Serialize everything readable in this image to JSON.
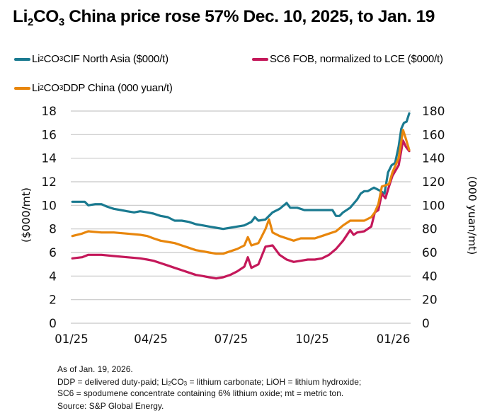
{
  "title": {
    "prefix": "Li",
    "sub1": "2",
    "mid": "CO",
    "sub2": "3",
    "rest": " China price rose 57% Dec. 10, 2025, to Jan. 19"
  },
  "legend": [
    {
      "id": "cif",
      "prefix": "Li",
      "sub1": "2",
      "mid": "CO",
      "sub2": "3",
      "rest": " CIF North Asia ($000/t)",
      "color": "#1a7a90"
    },
    {
      "id": "sc6",
      "prefix": "",
      "sub1": "",
      "mid": "",
      "sub2": "",
      "rest": "SC6 FOB, normalized to LCE ($000/t)",
      "color": "#c4185a"
    },
    {
      "id": "ddp",
      "prefix": "Li",
      "sub1": "2",
      "mid": "CO",
      "sub2": "3",
      "rest": " DDP China (000 yuan/t)",
      "color": "#e8860c"
    }
  ],
  "footnotes": {
    "line1": "As of Jan. 19, 2026.",
    "line2_a": "DDP = delivered duty-paid; Li",
    "line2_sub1": "2",
    "line2_b": "CO",
    "line2_sub2": "3",
    "line2_c": " = lithium carbonate; LiOH = lithium hydroxide;",
    "line3": "SC6 = spodumene concentrate containing 6% lithium oxide; mt = metric ton.",
    "line4": "Source: S&P Global Energy."
  },
  "chart_data": {
    "type": "line",
    "title": "Li2CO3 China price rose 57% Dec. 10, 2025, to Jan. 19",
    "xlabel": "",
    "ylabel": "($000/mt)",
    "ylabel_right": "(000 yuan/mt)",
    "ylim": [
      0,
      18
    ],
    "ylim_right": [
      0,
      180
    ],
    "xlim": [
      "2025-01-01",
      "2026-01-19"
    ],
    "grid": true,
    "legend_position": "top",
    "yticks": [
      "0",
      "2",
      "4",
      "6",
      "8",
      "10",
      "12",
      "14",
      "16",
      "18"
    ],
    "yticks_right": [
      "0",
      "20",
      "40",
      "60",
      "80",
      "100",
      "120",
      "140",
      "160",
      "180"
    ],
    "xticks": [
      {
        "label": "01/25",
        "date": "2025-01-01"
      },
      {
        "label": "04/25",
        "date": "2025-04-01"
      },
      {
        "label": "07/25",
        "date": "2025-07-01"
      },
      {
        "label": "10/25",
        "date": "2025-10-01"
      },
      {
        "label": "01/26",
        "date": "2026-01-01"
      }
    ],
    "series": [
      {
        "name": "Li2CO3 CIF North Asia ($000/t)",
        "axis": "left",
        "color": "#1a7a90",
        "points": [
          [
            "2025-01-02",
            10.3
          ],
          [
            "2025-01-16",
            10.3
          ],
          [
            "2025-01-20",
            10.0
          ],
          [
            "2025-01-28",
            10.1
          ],
          [
            "2025-02-04",
            10.1
          ],
          [
            "2025-02-10",
            9.9
          ],
          [
            "2025-02-18",
            9.7
          ],
          [
            "2025-02-26",
            9.6
          ],
          [
            "2025-03-05",
            9.5
          ],
          [
            "2025-03-13",
            9.4
          ],
          [
            "2025-03-20",
            9.5
          ],
          [
            "2025-03-28",
            9.4
          ],
          [
            "2025-04-04",
            9.3
          ],
          [
            "2025-04-12",
            9.1
          ],
          [
            "2025-04-20",
            9.0
          ],
          [
            "2025-04-28",
            8.7
          ],
          [
            "2025-05-06",
            8.7
          ],
          [
            "2025-05-14",
            8.6
          ],
          [
            "2025-05-22",
            8.4
          ],
          [
            "2025-05-30",
            8.3
          ],
          [
            "2025-06-06",
            8.2
          ],
          [
            "2025-06-14",
            8.1
          ],
          [
            "2025-06-22",
            8.0
          ],
          [
            "2025-06-30",
            8.1
          ],
          [
            "2025-07-08",
            8.2
          ],
          [
            "2025-07-16",
            8.3
          ],
          [
            "2025-07-24",
            8.6
          ],
          [
            "2025-07-28",
            9.0
          ],
          [
            "2025-08-01",
            8.7
          ],
          [
            "2025-08-09",
            8.8
          ],
          [
            "2025-08-17",
            9.4
          ],
          [
            "2025-08-25",
            9.7
          ],
          [
            "2025-09-02",
            10.2
          ],
          [
            "2025-09-06",
            9.8
          ],
          [
            "2025-09-14",
            9.8
          ],
          [
            "2025-09-22",
            9.6
          ],
          [
            "2025-09-30",
            9.6
          ],
          [
            "2025-10-08",
            9.6
          ],
          [
            "2025-10-16",
            9.6
          ],
          [
            "2025-10-24",
            9.6
          ],
          [
            "2025-10-28",
            9.1
          ],
          [
            "2025-11-01",
            9.1
          ],
          [
            "2025-11-05",
            9.4
          ],
          [
            "2025-11-13",
            9.8
          ],
          [
            "2025-11-21",
            10.5
          ],
          [
            "2025-11-25",
            11.0
          ],
          [
            "2025-11-29",
            11.2
          ],
          [
            "2025-12-03",
            11.2
          ],
          [
            "2025-12-10",
            11.5
          ],
          [
            "2025-12-18",
            11.2
          ],
          [
            "2025-12-22",
            11.0
          ],
          [
            "2025-12-26",
            12.8
          ],
          [
            "2025-12-30",
            13.4
          ],
          [
            "2026-01-03",
            13.6
          ],
          [
            "2026-01-07",
            15.0
          ],
          [
            "2026-01-10",
            16.5
          ],
          [
            "2026-01-13",
            17.0
          ],
          [
            "2026-01-16",
            17.1
          ],
          [
            "2026-01-19",
            17.8
          ]
        ]
      },
      {
        "name": "SC6 FOB, normalized to LCE ($000/t)",
        "axis": "left",
        "color": "#c4185a",
        "points": [
          [
            "2025-01-02",
            5.5
          ],
          [
            "2025-01-13",
            5.6
          ],
          [
            "2025-01-20",
            5.8
          ],
          [
            "2025-02-04",
            5.8
          ],
          [
            "2025-02-18",
            5.7
          ],
          [
            "2025-03-05",
            5.6
          ],
          [
            "2025-03-20",
            5.5
          ],
          [
            "2025-03-28",
            5.4
          ],
          [
            "2025-04-04",
            5.3
          ],
          [
            "2025-04-12",
            5.1
          ],
          [
            "2025-04-20",
            4.9
          ],
          [
            "2025-04-28",
            4.7
          ],
          [
            "2025-05-06",
            4.5
          ],
          [
            "2025-05-14",
            4.3
          ],
          [
            "2025-05-22",
            4.1
          ],
          [
            "2025-05-30",
            4.0
          ],
          [
            "2025-06-06",
            3.9
          ],
          [
            "2025-06-14",
            3.8
          ],
          [
            "2025-06-22",
            3.9
          ],
          [
            "2025-06-30",
            4.1
          ],
          [
            "2025-07-08",
            4.4
          ],
          [
            "2025-07-16",
            4.8
          ],
          [
            "2025-07-20",
            5.6
          ],
          [
            "2025-07-24",
            4.7
          ],
          [
            "2025-08-01",
            5.0
          ],
          [
            "2025-08-09",
            6.5
          ],
          [
            "2025-08-17",
            6.6
          ],
          [
            "2025-08-25",
            5.8
          ],
          [
            "2025-09-02",
            5.4
          ],
          [
            "2025-09-10",
            5.2
          ],
          [
            "2025-09-18",
            5.3
          ],
          [
            "2025-09-26",
            5.4
          ],
          [
            "2025-10-04",
            5.4
          ],
          [
            "2025-10-12",
            5.5
          ],
          [
            "2025-10-20",
            5.8
          ],
          [
            "2025-10-28",
            6.3
          ],
          [
            "2025-11-05",
            7.0
          ],
          [
            "2025-11-13",
            7.9
          ],
          [
            "2025-11-17",
            7.5
          ],
          [
            "2025-11-21",
            7.7
          ],
          [
            "2025-11-29",
            7.8
          ],
          [
            "2025-12-07",
            8.2
          ],
          [
            "2025-12-11",
            9.4
          ],
          [
            "2025-12-15",
            9.6
          ],
          [
            "2025-12-19",
            11.0
          ],
          [
            "2025-12-23",
            10.6
          ],
          [
            "2025-12-27",
            11.6
          ],
          [
            "2025-12-31",
            12.5
          ],
          [
            "2026-01-07",
            13.4
          ],
          [
            "2026-01-12",
            15.5
          ],
          [
            "2026-01-15",
            15.0
          ],
          [
            "2026-01-19",
            14.6
          ]
        ]
      },
      {
        "name": "Li2CO3 DDP China (000 yuan/t)",
        "axis": "right",
        "color": "#e8860c",
        "points": [
          [
            "2025-01-02",
            74
          ],
          [
            "2025-01-13",
            76
          ],
          [
            "2025-01-20",
            78
          ],
          [
            "2025-02-04",
            77
          ],
          [
            "2025-02-18",
            77
          ],
          [
            "2025-03-05",
            76
          ],
          [
            "2025-03-20",
            75
          ],
          [
            "2025-03-28",
            74
          ],
          [
            "2025-04-04",
            72
          ],
          [
            "2025-04-12",
            70
          ],
          [
            "2025-04-20",
            69
          ],
          [
            "2025-04-28",
            68
          ],
          [
            "2025-05-06",
            66
          ],
          [
            "2025-05-14",
            64
          ],
          [
            "2025-05-22",
            62
          ],
          [
            "2025-05-30",
            61
          ],
          [
            "2025-06-06",
            60
          ],
          [
            "2025-06-14",
            59
          ],
          [
            "2025-06-22",
            59
          ],
          [
            "2025-06-30",
            61
          ],
          [
            "2025-07-08",
            63
          ],
          [
            "2025-07-16",
            66
          ],
          [
            "2025-07-20",
            73
          ],
          [
            "2025-07-24",
            66
          ],
          [
            "2025-08-01",
            68
          ],
          [
            "2025-08-09",
            80
          ],
          [
            "2025-08-13",
            88
          ],
          [
            "2025-08-17",
            77
          ],
          [
            "2025-08-25",
            74
          ],
          [
            "2025-09-02",
            72
          ],
          [
            "2025-09-10",
            70
          ],
          [
            "2025-09-18",
            72
          ],
          [
            "2025-09-26",
            72
          ],
          [
            "2025-10-04",
            72
          ],
          [
            "2025-10-12",
            74
          ],
          [
            "2025-10-20",
            76
          ],
          [
            "2025-10-28",
            78
          ],
          [
            "2025-11-05",
            83
          ],
          [
            "2025-11-13",
            87
          ],
          [
            "2025-11-21",
            87
          ],
          [
            "2025-11-29",
            87
          ],
          [
            "2025-12-07",
            90
          ],
          [
            "2025-12-11",
            94
          ],
          [
            "2025-12-15",
            101
          ],
          [
            "2025-12-19",
            116
          ],
          [
            "2025-12-23",
            117
          ],
          [
            "2025-12-27",
            118
          ],
          [
            "2025-12-31",
            128
          ],
          [
            "2026-01-07",
            140
          ],
          [
            "2026-01-12",
            164
          ],
          [
            "2026-01-15",
            157
          ],
          [
            "2026-01-19",
            147
          ]
        ]
      }
    ]
  }
}
